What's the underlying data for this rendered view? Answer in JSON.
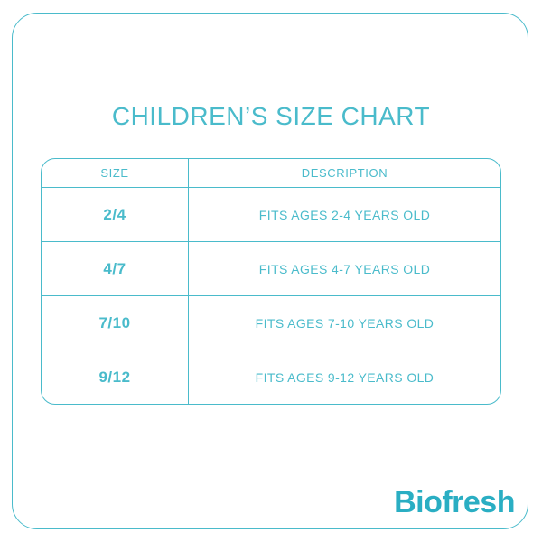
{
  "colors": {
    "teal": "#4abbcb",
    "logo_teal": "#2aaec3",
    "background": "#ffffff"
  },
  "title": "CHILDREN’S SIZE CHART",
  "table": {
    "headers": [
      "SIZE",
      "DESCRIPTION"
    ],
    "rows": [
      {
        "size": "2/4",
        "description": "FITS AGES 2-4 YEARS OLD"
      },
      {
        "size": "4/7",
        "description": "FITS AGES 4-7 YEARS OLD"
      },
      {
        "size": "7/10",
        "description": "FITS AGES 7-10 YEARS OLD"
      },
      {
        "size": "9/12",
        "description": "FITS AGES 9-12 YEARS OLD"
      }
    ]
  },
  "logo": "Biofresh",
  "chart_data": {
    "type": "table",
    "title": "CHILDREN’S SIZE CHART",
    "columns": [
      "SIZE",
      "DESCRIPTION"
    ],
    "rows": [
      [
        "2/4",
        "FITS AGES 2-4 YEARS OLD"
      ],
      [
        "4/7",
        "FITS AGES 4-7 YEARS OLD"
      ],
      [
        "7/10",
        "FITS AGES 7-10 YEARS OLD"
      ],
      [
        "9/12",
        "FITS AGES 9-12 YEARS OLD"
      ]
    ]
  }
}
